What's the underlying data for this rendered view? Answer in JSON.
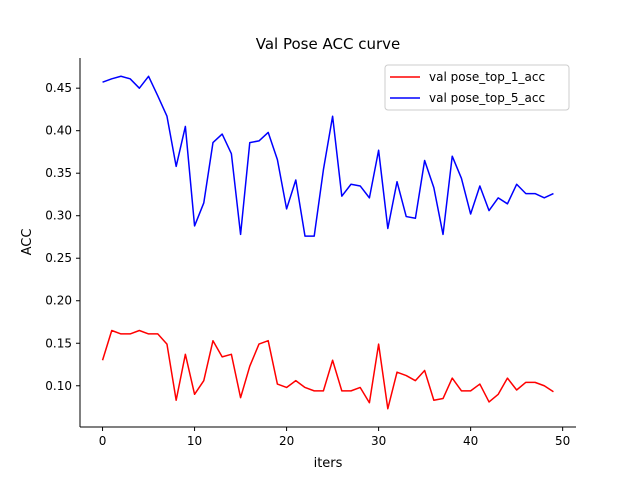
{
  "chart_data": {
    "type": "line",
    "title": "Val Pose ACC curve",
    "xlabel": "iters",
    "ylabel": "ACC",
    "xlim": [
      -2.45,
      51.45
    ],
    "ylim": [
      0.0515,
      0.4855
    ],
    "xticks": [
      0,
      10,
      20,
      30,
      40,
      50
    ],
    "yticks": [
      0.1,
      0.15,
      0.2,
      0.25,
      0.3,
      0.35,
      0.4,
      0.45
    ],
    "ytick_labels": [
      "0.10",
      "0.15",
      "0.20",
      "0.25",
      "0.30",
      "0.35",
      "0.40",
      "0.45"
    ],
    "legend_position": "upper right",
    "grid": false,
    "x": [
      0,
      1,
      2,
      3,
      4,
      5,
      6,
      7,
      8,
      9,
      10,
      11,
      12,
      13,
      14,
      15,
      16,
      17,
      18,
      19,
      20,
      21,
      22,
      23,
      24,
      25,
      26,
      27,
      28,
      29,
      30,
      31,
      32,
      33,
      34,
      35,
      36,
      37,
      38,
      39,
      40,
      41,
      42,
      43,
      44,
      45,
      46,
      47,
      48,
      49
    ],
    "series": [
      {
        "name": "val pose_top_1_acc",
        "color": "#ff0000",
        "values": [
          0.13,
          0.165,
          0.161,
          0.161,
          0.165,
          0.161,
          0.161,
          0.149,
          0.083,
          0.137,
          0.09,
          0.106,
          0.153,
          0.134,
          0.137,
          0.086,
          0.123,
          0.149,
          0.153,
          0.102,
          0.098,
          0.106,
          0.098,
          0.094,
          0.094,
          0.13,
          0.094,
          0.094,
          0.098,
          0.08,
          0.149,
          0.073,
          0.116,
          0.112,
          0.106,
          0.118,
          0.083,
          0.085,
          0.109,
          0.094,
          0.094,
          0.102,
          0.081,
          0.09,
          0.109,
          0.095,
          0.104,
          0.104,
          0.1,
          0.093
        ]
      },
      {
        "name": "val pose_top_5_acc",
        "color": "#0000ff",
        "values": [
          0.457,
          0.461,
          0.464,
          0.461,
          0.45,
          0.464,
          0.441,
          0.417,
          0.358,
          0.405,
          0.288,
          0.315,
          0.386,
          0.396,
          0.373,
          0.278,
          0.386,
          0.388,
          0.398,
          0.366,
          0.308,
          0.342,
          0.276,
          0.276,
          0.354,
          0.417,
          0.323,
          0.337,
          0.335,
          0.321,
          0.377,
          0.285,
          0.34,
          0.299,
          0.297,
          0.365,
          0.333,
          0.278,
          0.37,
          0.344,
          0.302,
          0.335,
          0.306,
          0.321,
          0.314,
          0.337,
          0.326,
          0.326,
          0.321,
          0.326
        ]
      }
    ]
  }
}
